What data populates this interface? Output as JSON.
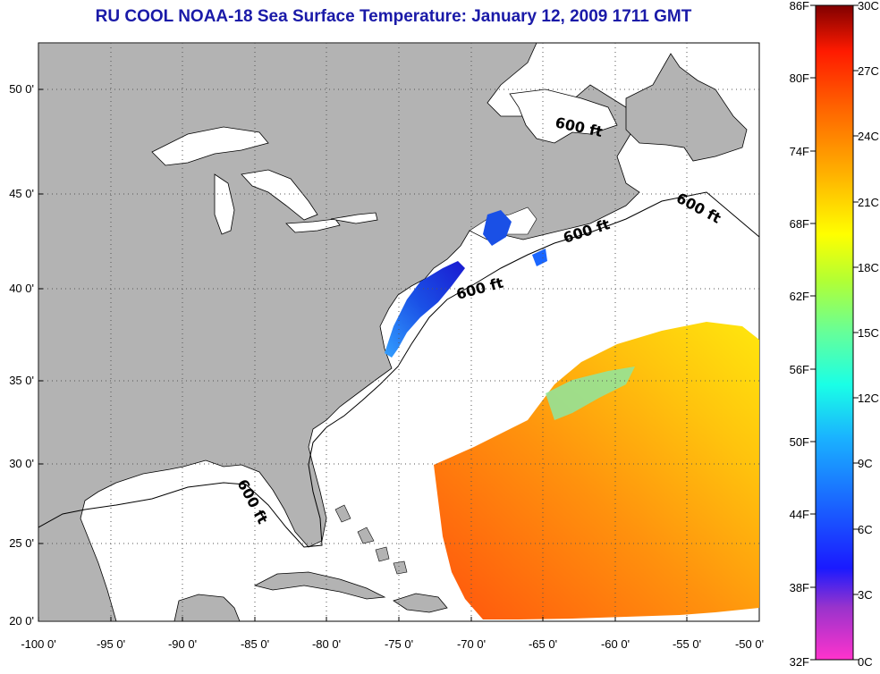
{
  "title": "RU COOL  NOAA-18  Sea Surface Temperature:  January 12, 2009 1711 GMT",
  "map": {
    "x_ticks": [
      "-100 0'",
      "-95 0'",
      "-90 0'",
      "-85 0'",
      "-80 0'",
      "-75 0'",
      "-70 0'",
      "-65 0'",
      "-60 0'",
      "-55 0'",
      "-50 0'"
    ],
    "y_ticks": [
      "20 0'",
      "25 0'",
      "30 0'",
      "35 0'",
      "40 0'",
      "45 0'",
      "50 0'"
    ],
    "lon_range": [
      -100,
      -50
    ],
    "lat_range": [
      20,
      52.5
    ],
    "grid": "dotted",
    "land_color": "#b3b3b3",
    "water_color": "#ffffff",
    "isobath_labels": [
      "600 ft",
      "600 ft",
      "600 ft",
      "600 ft",
      "600 ft"
    ]
  },
  "colorbar": {
    "fahrenheit_labels": [
      "86F",
      "80F",
      "74F",
      "68F",
      "62F",
      "56F",
      "50F",
      "44F",
      "38F",
      "32F"
    ],
    "celsius_labels": [
      "30C",
      "27C",
      "24C",
      "21C",
      "18C",
      "15C",
      "12C",
      "9C",
      "6C",
      "3C",
      "0C"
    ],
    "range_celsius": [
      0,
      30
    ]
  }
}
